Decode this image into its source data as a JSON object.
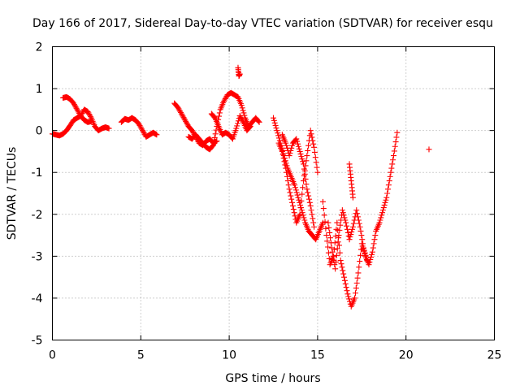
{
  "chart_data": {
    "type": "scatter",
    "title": "Day 166 of 2017, Sidereal Day-to-day VTEC variation (SDTVAR) for receiver esqu",
    "xlabel": "GPS time / hours",
    "ylabel": "SDTVAR / TECUs",
    "xlim": [
      0,
      25
    ],
    "ylim": [
      -5,
      2
    ],
    "xticks": [
      0,
      5,
      10,
      15,
      20,
      25
    ],
    "yticks": [
      -5,
      -4,
      -3,
      -2,
      -1,
      0,
      1,
      2
    ],
    "xtick_labels": [
      "0",
      "5",
      "10",
      "15",
      "20",
      "25"
    ],
    "ytick_labels": [
      "-5",
      "-4",
      "-3",
      "-2",
      "-1",
      "0",
      "1",
      "2"
    ],
    "grid": true,
    "legend": "none",
    "marker": "plus",
    "color": "#ff0000",
    "series": [
      {
        "x": [
          0.0,
          0.2,
          0.4,
          0.6,
          0.8,
          1.0,
          1.2,
          1.4,
          1.6,
          1.8,
          2.0,
          2.2,
          2.4,
          2.6,
          2.8,
          3.0,
          3.2
        ],
        "y": [
          -0.08,
          -0.1,
          -0.12,
          -0.08,
          0.0,
          0.12,
          0.25,
          0.3,
          0.35,
          0.5,
          0.45,
          0.3,
          0.1,
          0.0,
          0.05,
          0.08,
          0.05
        ]
      },
      {
        "x": [
          0.6,
          0.8,
          1.0,
          1.2,
          1.4,
          1.6,
          1.8,
          2.0,
          2.2
        ],
        "y": [
          0.78,
          0.8,
          0.75,
          0.65,
          0.5,
          0.35,
          0.25,
          0.2,
          0.22
        ]
      },
      {
        "x": [
          3.9,
          4.1,
          4.3,
          4.5,
          4.7,
          4.9,
          5.1,
          5.3,
          5.5,
          5.7,
          5.9
        ],
        "y": [
          0.2,
          0.28,
          0.25,
          0.3,
          0.25,
          0.15,
          0.0,
          -0.15,
          -0.1,
          -0.05,
          -0.1
        ]
      },
      {
        "x": [
          6.9,
          7.1,
          7.3,
          7.5,
          7.7,
          7.9,
          8.1,
          8.3,
          8.5,
          8.7,
          8.9,
          9.1,
          9.3
        ],
        "y": [
          0.65,
          0.55,
          0.4,
          0.25,
          0.1,
          0.0,
          -0.15,
          -0.3,
          -0.35,
          -0.25,
          -0.2,
          -0.3,
          -0.25
        ]
      },
      {
        "x": [
          7.7,
          7.9,
          8.1,
          8.3,
          8.5,
          8.7,
          8.9,
          9.1,
          9.3,
          9.5,
          9.7,
          9.9,
          10.1,
          10.3,
          10.5,
          10.7,
          10.9,
          11.1,
          11.3,
          11.5,
          11.7
        ],
        "y": [
          -0.15,
          -0.2,
          -0.1,
          -0.2,
          -0.3,
          -0.4,
          -0.45,
          -0.35,
          0.1,
          0.5,
          0.7,
          0.85,
          0.9,
          0.85,
          0.8,
          0.6,
          0.3,
          0.1,
          0.2,
          0.3,
          0.2
        ]
      },
      {
        "x": [
          9.0,
          9.2,
          9.4,
          9.6,
          9.8,
          10.0,
          10.2,
          10.4,
          10.6,
          10.8,
          11.0,
          11.2
        ],
        "y": [
          0.4,
          0.3,
          0.1,
          -0.1,
          -0.05,
          -0.1,
          -0.2,
          0.05,
          0.35,
          0.2,
          0.0,
          0.1
        ]
      },
      {
        "x": [
          10.5,
          10.55,
          10.6
        ],
        "y": [
          1.5,
          1.3,
          1.35
        ]
      },
      {
        "x": [
          12.5,
          12.7,
          12.9,
          13.1,
          13.3,
          13.5,
          13.7,
          13.9,
          14.1,
          14.3,
          14.5,
          14.7,
          14.9,
          15.1,
          15.3
        ],
        "y": [
          0.3,
          0.0,
          -0.3,
          -0.6,
          -0.9,
          -1.1,
          -1.3,
          -1.6,
          -1.9,
          -2.2,
          -2.4,
          -2.5,
          -2.6,
          -2.4,
          -2.2
        ]
      },
      {
        "x": [
          12.8,
          13.0,
          13.2,
          13.4,
          13.6,
          13.8,
          14.0,
          14.2,
          14.4,
          14.6,
          14.8,
          15.0
        ],
        "y": [
          -0.3,
          -0.5,
          -0.9,
          -1.4,
          -1.8,
          -2.2,
          -2.0,
          -1.2,
          -0.6,
          0.0,
          -0.4,
          -1.0
        ]
      },
      {
        "x": [
          13.0,
          13.2,
          13.4,
          13.6,
          13.8,
          14.0,
          14.2,
          14.4,
          14.6,
          14.8
        ],
        "y": [
          -0.1,
          -0.3,
          -0.6,
          -0.3,
          -0.2,
          -0.5,
          -0.8,
          -1.4,
          -1.8,
          -2.3
        ]
      },
      {
        "x": [
          15.3,
          15.5,
          15.7,
          15.9,
          16.1,
          16.3,
          16.5,
          16.7,
          16.9,
          17.1,
          17.3,
          17.5,
          17.7,
          17.9,
          18.1,
          18.3,
          18.5,
          18.7,
          18.9,
          19.1,
          19.3,
          19.5
        ],
        "y": [
          -1.7,
          -2.5,
          -3.2,
          -3.0,
          -2.2,
          -3.1,
          -3.5,
          -3.9,
          -4.2,
          -4.0,
          -3.4,
          -2.7,
          -3.0,
          -3.2,
          -2.9,
          -2.4,
          -2.2,
          -1.9,
          -1.6,
          -1.1,
          -0.6,
          -0.05
        ]
      },
      {
        "x": [
          15.6,
          15.8,
          16.0,
          16.2,
          16.4,
          16.6,
          16.8,
          17.0,
          17.2,
          17.4,
          17.6,
          17.8
        ],
        "y": [
          -2.2,
          -2.8,
          -3.3,
          -2.5,
          -1.9,
          -2.2,
          -2.6,
          -2.3,
          -1.9,
          -2.3,
          -2.8,
          -3.1
        ]
      },
      {
        "x": [
          16.8,
          16.9,
          17.0
        ],
        "y": [
          -0.8,
          -1.2,
          -1.6
        ]
      },
      {
        "x": [
          21.3
        ],
        "y": [
          -0.45
        ]
      }
    ]
  }
}
